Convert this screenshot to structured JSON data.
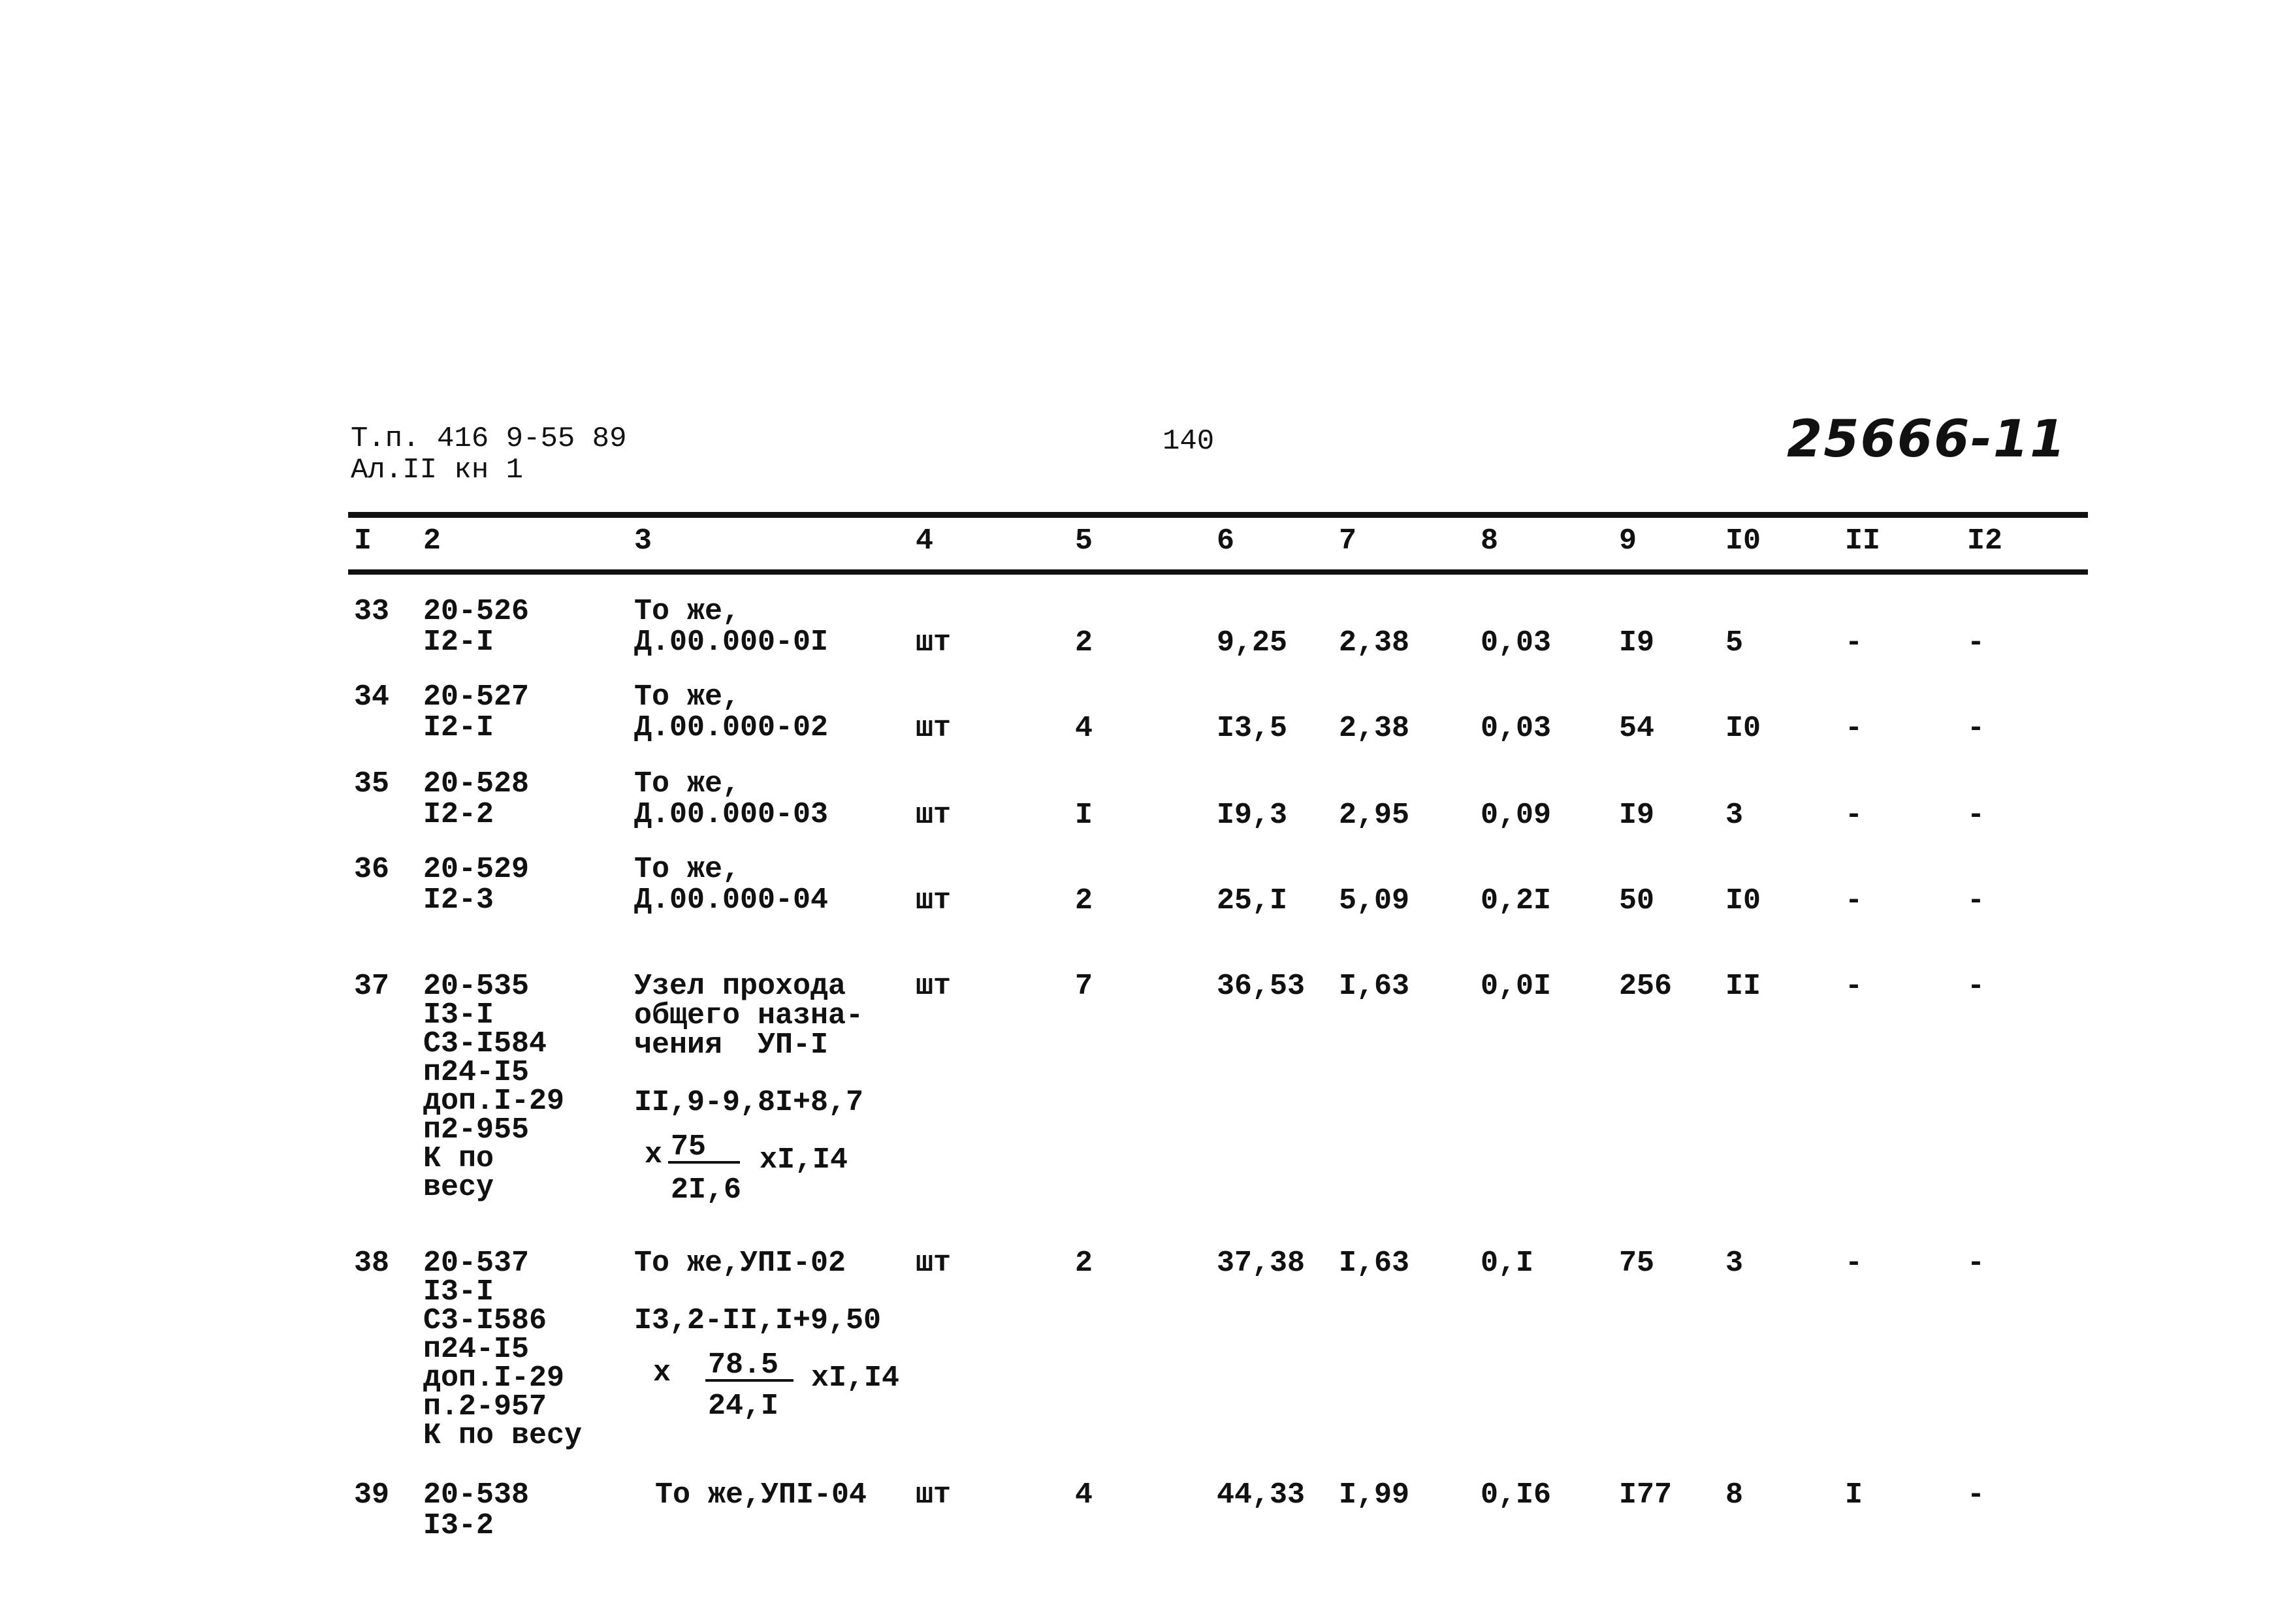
{
  "header": {
    "ref_line1": "Т.п. 416 9-55 89",
    "ref_line2": "Ал.II кн 1",
    "page_number": "140",
    "doc_number": "25666-11"
  },
  "columns": [
    "I",
    "2",
    "3",
    "4",
    "5",
    "6",
    "7",
    "8",
    "9",
    "I0",
    "II",
    "I2"
  ],
  "rows": [
    {
      "no": "33",
      "code": [
        "20-526",
        "I2-I"
      ],
      "desc": [
        "То же,",
        "Д.00.000-0I"
      ],
      "unit": "шт",
      "c5": "2",
      "c6": "9,25",
      "c7": "2,38",
      "c8": "0,03",
      "c9": "I9",
      "c10": "5",
      "c11": "-",
      "c12": "-"
    },
    {
      "no": "34",
      "code": [
        "20-527",
        "I2-I"
      ],
      "desc": [
        "То же,",
        "Д.00.000-02"
      ],
      "unit": "шт",
      "c5": "4",
      "c6": "I3,5",
      "c7": "2,38",
      "c8": "0,03",
      "c9": "54",
      "c10": "I0",
      "c11": "-",
      "c12": "-"
    },
    {
      "no": "35",
      "code": [
        "20-528",
        "I2-2"
      ],
      "desc": [
        "То же,",
        "Д.00.000-03"
      ],
      "unit": "шт",
      "c5": "I",
      "c6": "I9,3",
      "c7": "2,95",
      "c8": "0,09",
      "c9": "I9",
      "c10": "3",
      "c11": "-",
      "c12": "-"
    },
    {
      "no": "36",
      "code": [
        "20-529",
        "I2-3"
      ],
      "desc": [
        "То же,",
        "Д.00.000-04"
      ],
      "unit": "шт",
      "c5": "2",
      "c6": "25,I",
      "c7": "5,09",
      "c8": "0,2I",
      "c9": "50",
      "c10": "I0",
      "c11": "-",
      "c12": "-"
    },
    {
      "no": "37",
      "code": [
        "20-535",
        "I3-I",
        "С3-I584",
        "п24-I5",
        "доп.I-29",
        "п2-955",
        "К по",
        "весу"
      ],
      "desc": [
        "Узел прохода",
        "общего назна-",
        "чения  УП-I"
      ],
      "formula": "II,9-9,8I+8,7",
      "times": "х",
      "numerator": "75",
      "denominator": "2I,6",
      "multiplier": "хI,I4",
      "unit": "шт",
      "c5": "7",
      "c6": "36,53",
      "c7": "I,63",
      "c8": "0,0I",
      "c9": "256",
      "c10": "II",
      "c11": "-",
      "c12": "-"
    },
    {
      "no": "38",
      "code": [
        "20-537",
        "I3-I",
        "С3-I586",
        "п24-I5",
        "доп.I-29",
        "п.2-957",
        "К по весу"
      ],
      "desc": [
        "То же,УПI-02"
      ],
      "formula": "I3,2-II,I+9,50",
      "times": "х",
      "numerator": "78.5",
      "denominator": "24,I",
      "multiplier": "хI,I4",
      "unit": "шт",
      "c5": "2",
      "c6": "37,38",
      "c7": "I,63",
      "c8": "0,I",
      "c9": "75",
      "c10": "3",
      "c11": "-",
      "c12": "-"
    },
    {
      "no": "39",
      "code": [
        "20-538",
        "I3-2"
      ],
      "desc": [
        "То же,УПI-04"
      ],
      "unit": "шт",
      "c5": "4",
      "c6": "44,33",
      "c7": "I,99",
      "c8": "0,I6",
      "c9": "I77",
      "c10": "8",
      "c11": "I",
      "c12": "-"
    }
  ]
}
